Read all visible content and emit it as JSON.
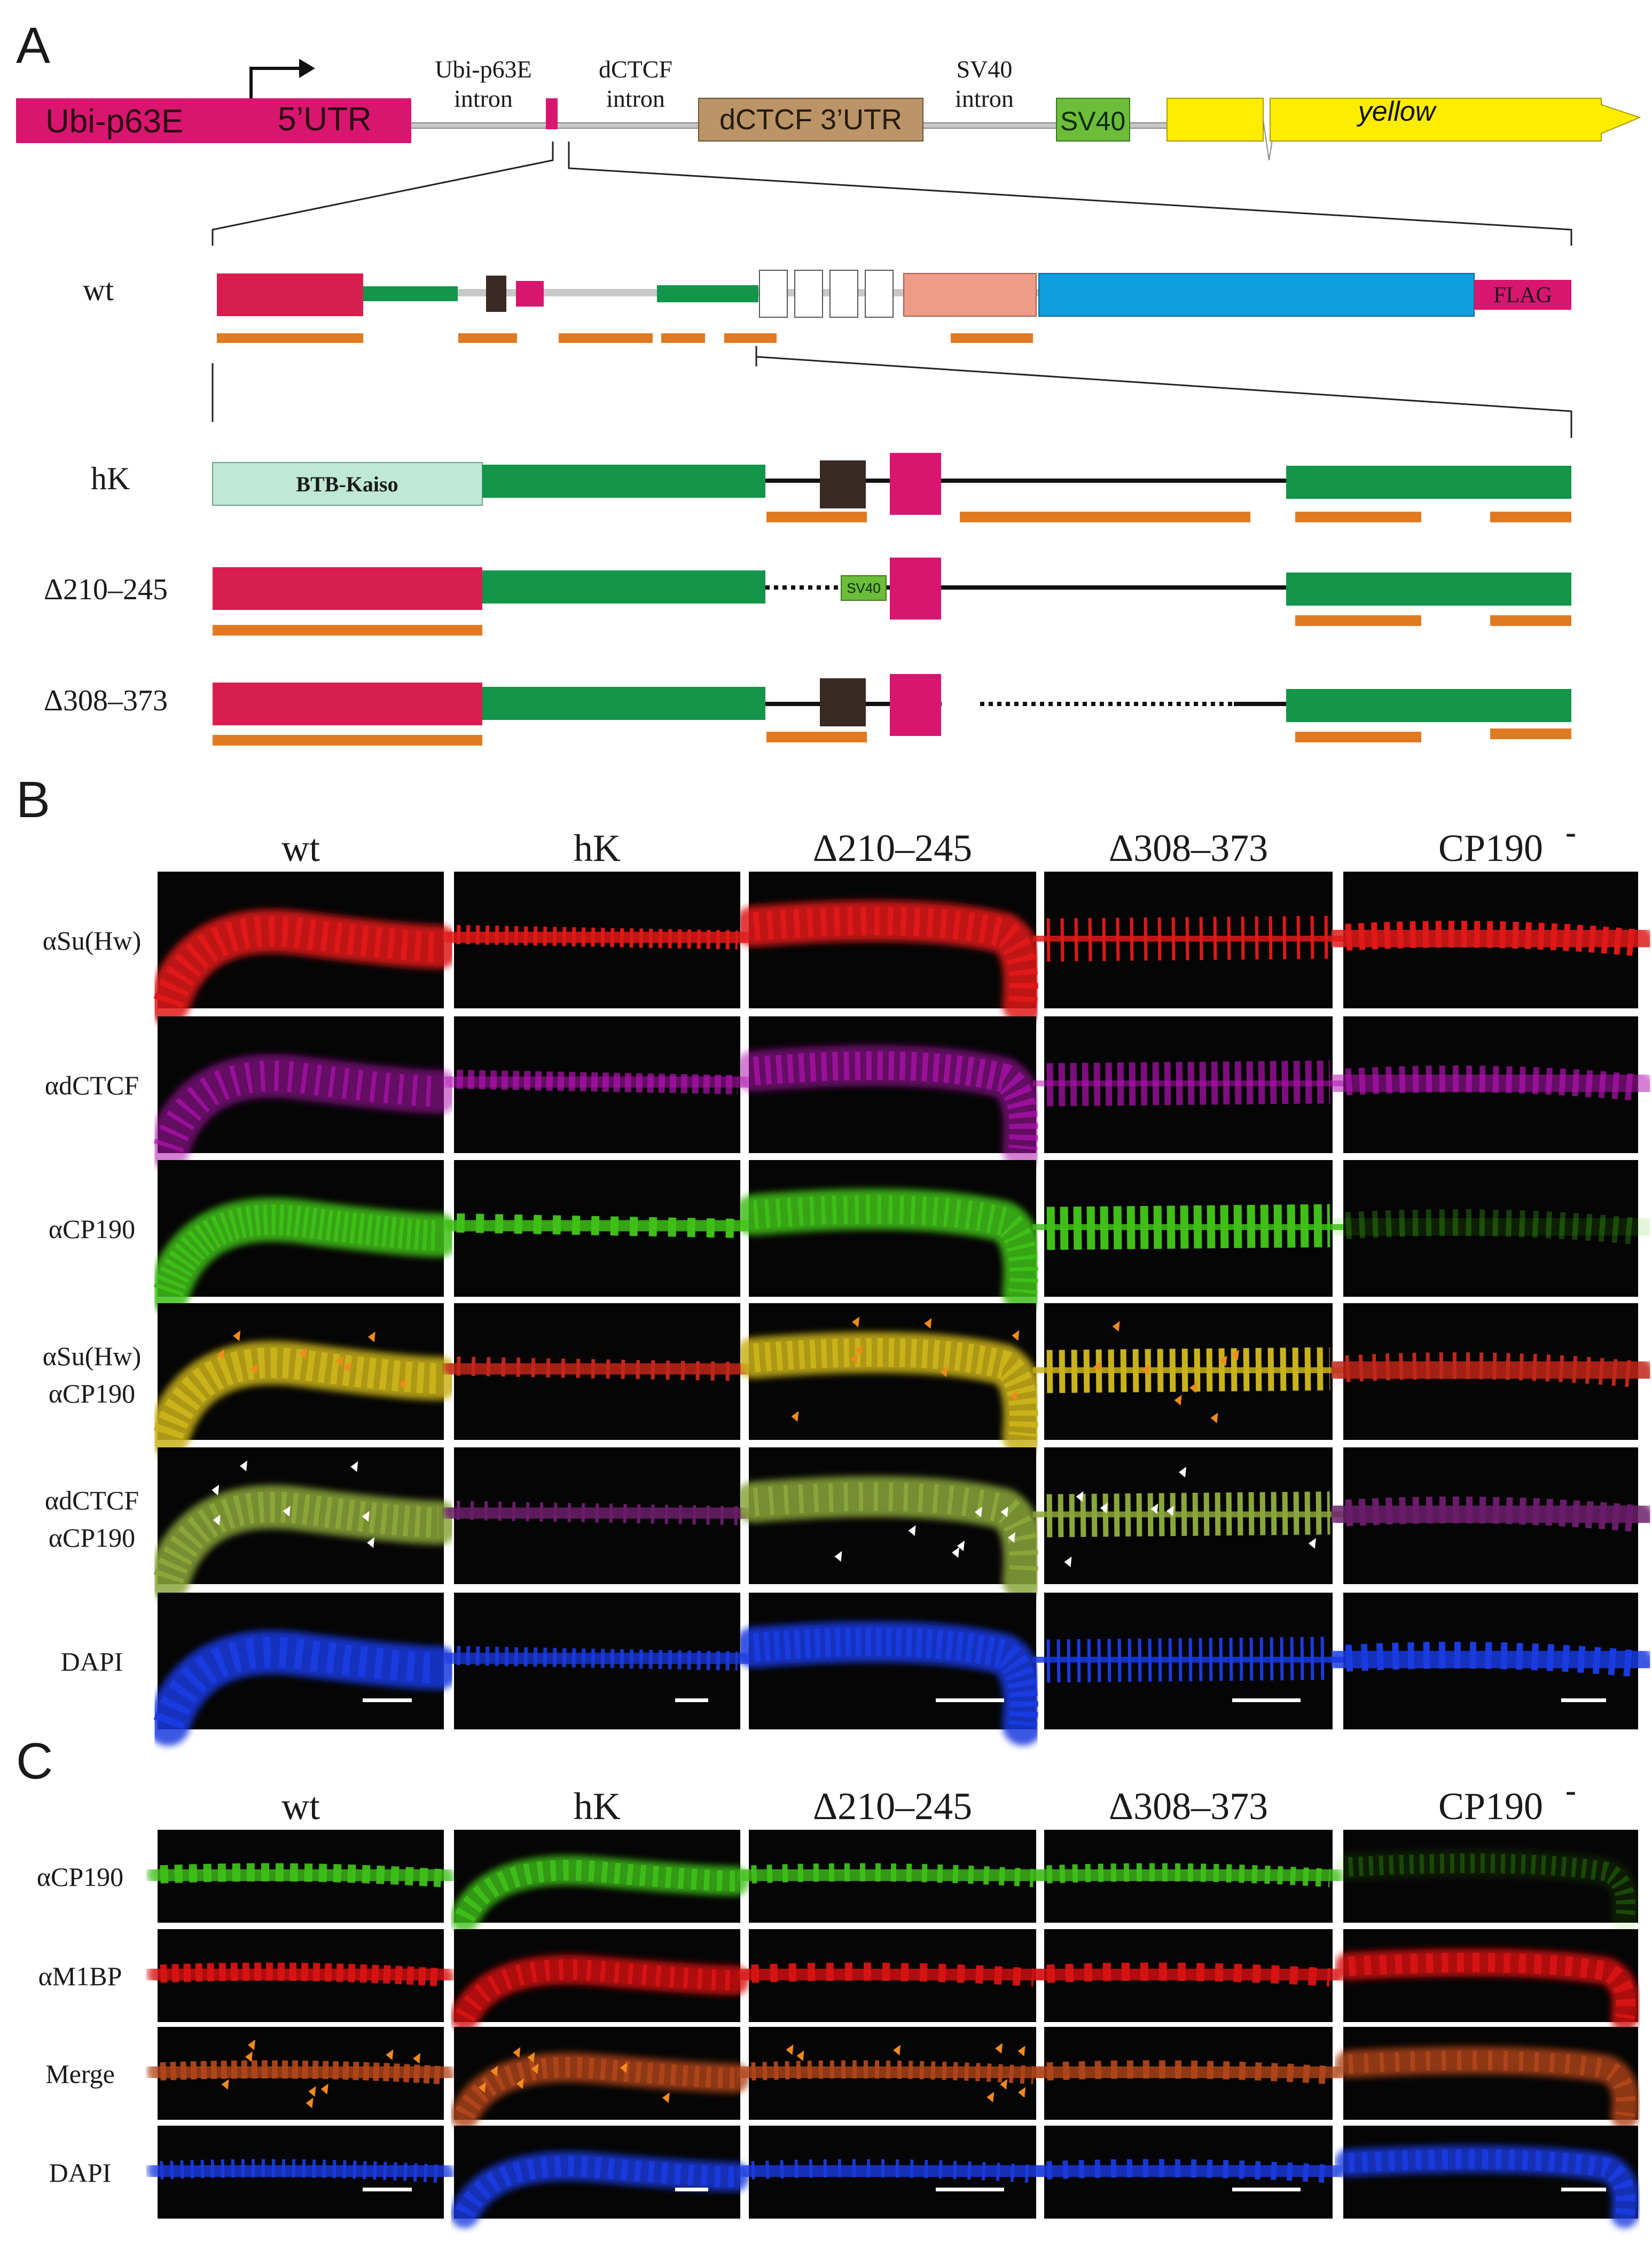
{
  "panel_labels": {
    "a": "A",
    "b": "B",
    "c": "C"
  },
  "construct": {
    "promoter": "Ubi-p63E",
    "utr5": "5’UTR",
    "ubi_intron_line1": "Ubi-p63E",
    "ubi_intron_line2": "intron",
    "dctcf_intron_line1": "dCTCF",
    "dctcf_intron_line2": "intron",
    "utr3": "dCTCF 3’UTR",
    "sv40_intron_line1": "SV40",
    "sv40_intron_line2": "intron",
    "sv40_box": "SV40",
    "reporter": "yellow"
  },
  "domains": {
    "wt_label": "wt",
    "flag": "FLAG",
    "hk_label": "hK",
    "btb_kaiso": "BTB-Kaiso",
    "del1_label": "Δ210–245",
    "del1_sv40": "SV40",
    "del2_label": "Δ308–373"
  },
  "panel_b": {
    "columns": [
      "wt",
      "hK",
      "Δ210–245",
      "Δ308–373",
      "CP190"
    ],
    "cp190_superscript": "-",
    "rows": [
      {
        "line1": "αSu(Hw)",
        "line2": ""
      },
      {
        "line1": "αdCTCF",
        "line2": ""
      },
      {
        "line1": "αCP190",
        "line2": ""
      },
      {
        "line1": "αSu(Hw)",
        "line2": "αCP190"
      },
      {
        "line1": "αdCTCF",
        "line2": "αCP190"
      },
      {
        "line1": "DAPI",
        "line2": ""
      }
    ]
  },
  "panel_c": {
    "columns": [
      "wt",
      "hK",
      "Δ210–245",
      "Δ308–373",
      "CP190"
    ],
    "cp190_superscript": "-",
    "rows": [
      "αCP190",
      "αM1BP",
      "Merge",
      "DAPI"
    ]
  },
  "colors": {
    "magenta": "#d8166f",
    "utr_brown": "#bb9467",
    "sv40_green": "#6cbd3a",
    "yellow": "#ffed00",
    "crimson": "#d81e4f",
    "green": "#13964a",
    "salmon": "#ee9c87",
    "blue": "#109ddf",
    "mint": "#bfe8d6",
    "orange": "#e07a22",
    "dark": "#3a2a24"
  }
}
